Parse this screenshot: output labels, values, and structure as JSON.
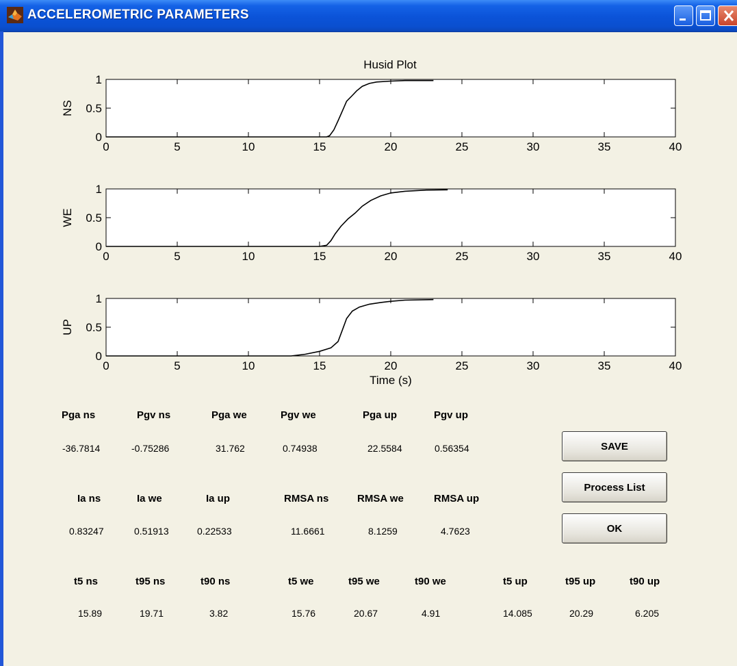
{
  "window": {
    "title": "ACCELEROMETRIC PARAMETERS",
    "icon": "matlab-icon",
    "controls": [
      "minimize-icon",
      "maximize-icon",
      "close-icon"
    ],
    "titlebar_color": "#0b53d8"
  },
  "chart_data": [
    {
      "type": "line",
      "title": "Husid Plot",
      "ylabel": "NS",
      "xlabel": "",
      "xlim": [
        0,
        40
      ],
      "ylim": [
        0,
        1
      ],
      "x_ticks": [
        "0",
        "5",
        "10",
        "15",
        "20",
        "25",
        "30",
        "35",
        "40"
      ],
      "y_ticks": [
        "0",
        "0.5",
        "1"
      ],
      "grid": false,
      "series": [
        {
          "x": [
            0,
            15.5,
            15.7,
            16,
            16.3,
            16.6,
            16.9,
            17.3,
            17.6,
            18.0,
            18.5,
            19.0,
            20.0,
            21.0,
            23.0
          ],
          "y": [
            0,
            0,
            0.02,
            0.12,
            0.28,
            0.45,
            0.62,
            0.72,
            0.8,
            0.88,
            0.93,
            0.955,
            0.97,
            0.98,
            0.98
          ]
        }
      ]
    },
    {
      "type": "line",
      "title": "",
      "ylabel": "WE",
      "xlabel": "",
      "xlim": [
        0,
        40
      ],
      "ylim": [
        0,
        1
      ],
      "x_ticks": [
        "0",
        "5",
        "10",
        "15",
        "20",
        "25",
        "30",
        "35",
        "40"
      ],
      "y_ticks": [
        "0",
        "0.5",
        "1"
      ],
      "grid": false,
      "series": [
        {
          "x": [
            0,
            15.0,
            15.5,
            15.8,
            16.1,
            16.5,
            17.0,
            17.5,
            18.0,
            18.6,
            19.3,
            20.0,
            21.0,
            22.5,
            24.0
          ],
          "y": [
            0,
            0,
            0.02,
            0.1,
            0.22,
            0.35,
            0.48,
            0.58,
            0.7,
            0.8,
            0.88,
            0.93,
            0.96,
            0.98,
            0.985
          ]
        }
      ]
    },
    {
      "type": "line",
      "title": "",
      "ylabel": "UP",
      "xlabel": "Time (s)",
      "xlim": [
        0,
        40
      ],
      "ylim": [
        0,
        1
      ],
      "x_ticks": [
        "0",
        "5",
        "10",
        "15",
        "20",
        "25",
        "30",
        "35",
        "40"
      ],
      "y_ticks": [
        "0",
        "0.5",
        "1"
      ],
      "grid": false,
      "series": [
        {
          "x": [
            0,
            13.0,
            14.0,
            15.0,
            15.8,
            16.3,
            16.6,
            16.9,
            17.3,
            17.8,
            18.5,
            19.3,
            20.0,
            21.0,
            23.0
          ],
          "y": [
            0,
            0,
            0.03,
            0.08,
            0.14,
            0.25,
            0.45,
            0.65,
            0.78,
            0.85,
            0.9,
            0.93,
            0.95,
            0.97,
            0.98
          ]
        }
      ]
    }
  ],
  "parameters": {
    "row1": {
      "labels": [
        "Pga ns",
        "Pgv ns",
        "Pga we",
        "Pgv we",
        "Pga up",
        "Pgv up"
      ],
      "values": [
        "-36.7814",
        "-0.75286",
        "31.762",
        "0.74938",
        "22.5584",
        "0.56354"
      ]
    },
    "row2": {
      "labels": [
        "Ia ns",
        "Ia we",
        "Ia up",
        "RMSA ns",
        "RMSA we",
        "RMSA up"
      ],
      "values": [
        "0.83247",
        "0.51913",
        "0.22533",
        "11.6661",
        "8.1259",
        "4.7623"
      ]
    },
    "row3": {
      "labels": [
        "t5 ns",
        "t95 ns",
        "t90 ns",
        "t5 we",
        "t95 we",
        "t90 we",
        "t5 up",
        "t95 up",
        "t90 up"
      ],
      "values": [
        "15.89",
        "19.71",
        "3.82",
        "15.76",
        "20.67",
        "4.91",
        "14.085",
        "20.29",
        "6.205"
      ]
    }
  },
  "buttons": {
    "save": "SAVE",
    "process_list": "Process List",
    "ok": "OK"
  }
}
